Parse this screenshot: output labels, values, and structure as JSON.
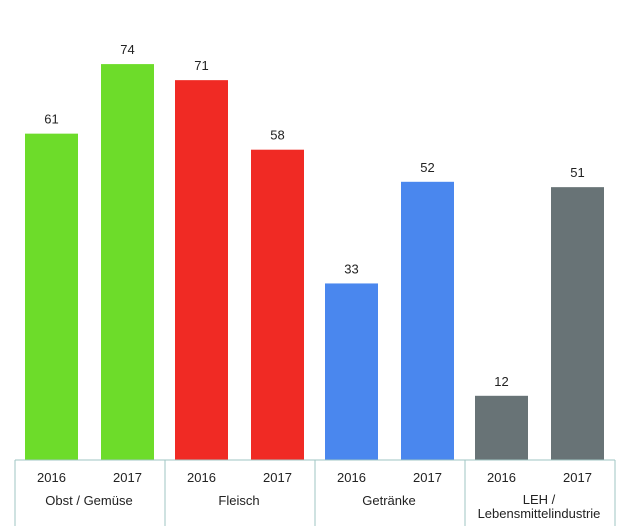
{
  "chart_data": {
    "type": "bar",
    "ylim": [
      0,
      80
    ],
    "grid": false,
    "groups": [
      {
        "label_lines": [
          "Obst / Gemüse"
        ],
        "color": "#6ddc2a",
        "bars": [
          {
            "year": "2016",
            "value": 61
          },
          {
            "year": "2017",
            "value": 74
          }
        ]
      },
      {
        "label_lines": [
          "Fleisch"
        ],
        "color": "#f02a24",
        "bars": [
          {
            "year": "2016",
            "value": 71
          },
          {
            "year": "2017",
            "value": 58
          }
        ]
      },
      {
        "label_lines": [
          "Getränke"
        ],
        "color": "#4a87ee",
        "bars": [
          {
            "year": "2016",
            "value": 33
          },
          {
            "year": "2017",
            "value": 52
          }
        ]
      },
      {
        "label_lines": [
          "LEH /",
          "Lebensmittelindustrie"
        ],
        "color": "#687376",
        "bars": [
          {
            "year": "2016",
            "value": 12
          },
          {
            "year": "2017",
            "value": 51
          }
        ]
      }
    ]
  }
}
